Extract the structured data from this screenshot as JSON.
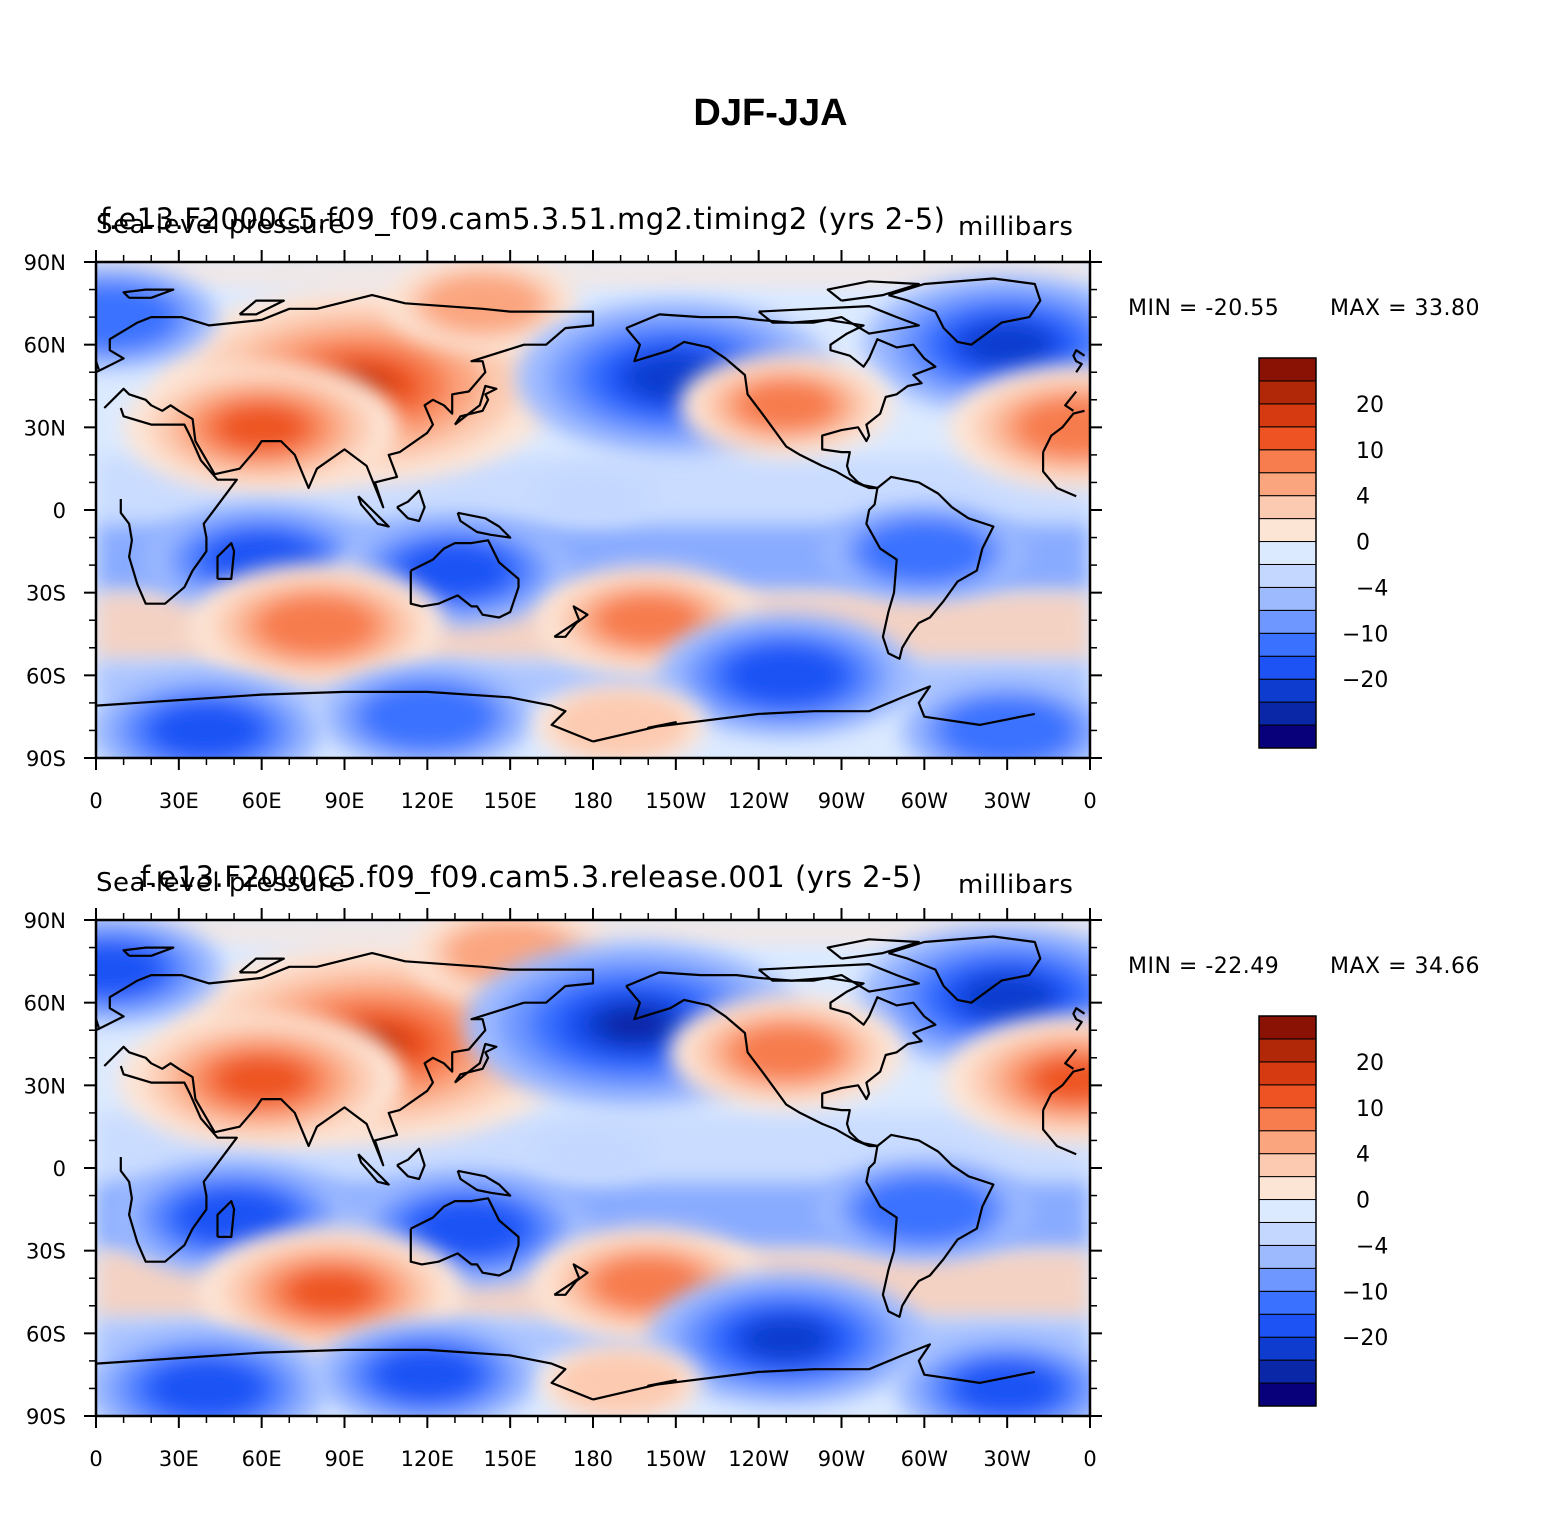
{
  "title": "DJF-JJA",
  "colors": {
    "levels": [
      "#08007a",
      "#0a27a8",
      "#0d3ccf",
      "#1d53f5",
      "#3a72ff",
      "#6e97ff",
      "#9dbaff",
      "#c4d8ff",
      "#dceaff",
      "#fde5d6",
      "#fccab0",
      "#fba57f",
      "#f77c4e",
      "#ee5423",
      "#d63a10",
      "#b02808",
      "#8a1204"
    ],
    "land_outline": "#000000"
  },
  "chart_data": [
    {
      "type": "heatmap",
      "case_name": "f.e13.F2000C5.f09_f09.cam5.3.51.mg2.timing2  (yrs  2-5)",
      "variable": "Sea-level pressure",
      "units": "millibars",
      "min_label": "MIN = -20.55",
      "max_label": "MAX =  33.80",
      "min": -20.55,
      "max": 33.8,
      "x_ticks": [
        "0",
        "30E",
        "60E",
        "90E",
        "120E",
        "150E",
        "180",
        "150W",
        "120W",
        "90W",
        "60W",
        "30W",
        "0"
      ],
      "y_ticks": [
        "90N",
        "60N",
        "30N",
        "0",
        "30S",
        "60S",
        "90S"
      ],
      "x_range": [
        0,
        360
      ],
      "y_range": [
        -90,
        90
      ],
      "colorbar_labels": [
        "20",
        "10",
        "4",
        "0",
        "-4",
        "-10",
        "-20"
      ],
      "colorbar_levels": [
        -30,
        -25,
        -20,
        -15,
        -10,
        -7,
        -4,
        -2,
        0,
        2,
        4,
        7,
        10,
        15,
        20,
        25,
        30
      ],
      "features": [
        {
          "lon": 95,
          "lat": 45,
          "value": 28
        },
        {
          "lon": 60,
          "lat": 30,
          "value": 16
        },
        {
          "lon": 140,
          "lat": 75,
          "value": 8
        },
        {
          "lon": 210,
          "lat": 48,
          "value": -20
        },
        {
          "lon": 330,
          "lat": 60,
          "value": -17
        },
        {
          "lon": 250,
          "lat": 38,
          "value": 10
        },
        {
          "lon": 355,
          "lat": 30,
          "value": 14
        },
        {
          "lon": 5,
          "lat": 70,
          "value": -10
        },
        {
          "lon": 60,
          "lat": -18,
          "value": -12
        },
        {
          "lon": 130,
          "lat": -22,
          "value": -12
        },
        {
          "lon": 300,
          "lat": -15,
          "value": -9
        },
        {
          "lon": 80,
          "lat": -42,
          "value": 14
        },
        {
          "lon": 200,
          "lat": -40,
          "value": 11
        },
        {
          "lon": 250,
          "lat": -60,
          "value": -14
        },
        {
          "lon": 40,
          "lat": -80,
          "value": -12
        },
        {
          "lon": 120,
          "lat": -75,
          "value": -10
        },
        {
          "lon": 190,
          "lat": -78,
          "value": 6
        },
        {
          "lon": 330,
          "lat": -80,
          "value": -10
        },
        {
          "lon": 180,
          "lat": 5,
          "value": -1
        }
      ]
    },
    {
      "type": "heatmap",
      "case_name": "f.e13.F2000C5.f09_f09.cam5.3.release.001  (yrs  2-5)",
      "variable": "Sea-level pressure",
      "units": "millibars",
      "min_label": "MIN = -22.49",
      "max_label": "MAX =  34.66",
      "min": -22.49,
      "max": 34.66,
      "x_ticks": [
        "0",
        "30E",
        "60E",
        "90E",
        "120E",
        "150E",
        "180",
        "150W",
        "120W",
        "90W",
        "60W",
        "30W",
        "0"
      ],
      "y_ticks": [
        "90N",
        "60N",
        "30N",
        "0",
        "30S",
        "60S",
        "90S"
      ],
      "x_range": [
        0,
        360
      ],
      "y_range": [
        -90,
        90
      ],
      "colorbar_labels": [
        "20",
        "10",
        "4",
        "0",
        "-4",
        "-10",
        "-20"
      ],
      "colorbar_levels": [
        -30,
        -25,
        -20,
        -15,
        -10,
        -7,
        -4,
        -2,
        0,
        2,
        4,
        7,
        10,
        15,
        20,
        25,
        30
      ],
      "features": [
        {
          "lon": 100,
          "lat": 45,
          "value": 29
        },
        {
          "lon": 60,
          "lat": 32,
          "value": 17
        },
        {
          "lon": 150,
          "lat": 78,
          "value": 9
        },
        {
          "lon": 195,
          "lat": 52,
          "value": -22
        },
        {
          "lon": 330,
          "lat": 62,
          "value": -18
        },
        {
          "lon": 250,
          "lat": 42,
          "value": 12
        },
        {
          "lon": 355,
          "lat": 32,
          "value": 15
        },
        {
          "lon": 5,
          "lat": 72,
          "value": -11
        },
        {
          "lon": 50,
          "lat": -18,
          "value": -13
        },
        {
          "lon": 135,
          "lat": -22,
          "value": -13
        },
        {
          "lon": 300,
          "lat": -15,
          "value": -10
        },
        {
          "lon": 85,
          "lat": -45,
          "value": 15
        },
        {
          "lon": 200,
          "lat": -42,
          "value": 12
        },
        {
          "lon": 250,
          "lat": -62,
          "value": -16
        },
        {
          "lon": 40,
          "lat": -80,
          "value": -13
        },
        {
          "lon": 120,
          "lat": -75,
          "value": -11
        },
        {
          "lon": 190,
          "lat": -78,
          "value": 5
        },
        {
          "lon": 330,
          "lat": -80,
          "value": -11
        },
        {
          "lon": 180,
          "lat": 5,
          "value": -1
        }
      ]
    }
  ]
}
